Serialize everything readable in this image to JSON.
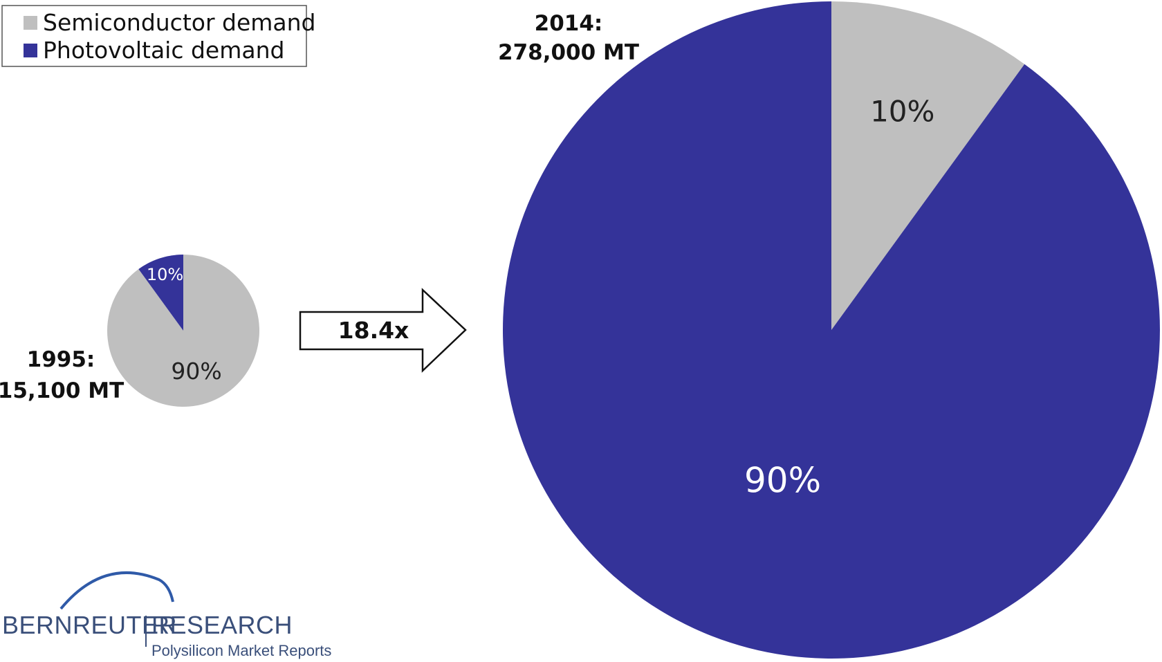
{
  "chart_data": [
    {
      "type": "pie",
      "year_label": "1995:",
      "total_label": "15,100 MT",
      "slices": [
        {
          "name": "Semiconductor demand",
          "value": 90,
          "label": "90%",
          "color": "#bfbfbf"
        },
        {
          "name": "Photovoltaic demand",
          "value": 10,
          "label": "10%",
          "color": "#343399"
        }
      ]
    },
    {
      "type": "pie",
      "year_label": "2014:",
      "total_label": "278,000 MT",
      "slices": [
        {
          "name": "Semiconductor demand",
          "value": 10,
          "label": "10%",
          "color": "#bfbfbf"
        },
        {
          "name": "Photovoltaic demand",
          "value": 90,
          "label": "90%",
          "color": "#343399"
        }
      ]
    }
  ],
  "legend": {
    "items": [
      {
        "label": "Semiconductor demand",
        "color": "#bfbfbf"
      },
      {
        "label": "Photovoltaic demand",
        "color": "#343399"
      }
    ]
  },
  "growth": {
    "label": "18.4x"
  },
  "logo": {
    "name_left": "BERNREUTER",
    "name_right": "RESEARCH",
    "tagline": "Polysilicon Market Reports"
  }
}
